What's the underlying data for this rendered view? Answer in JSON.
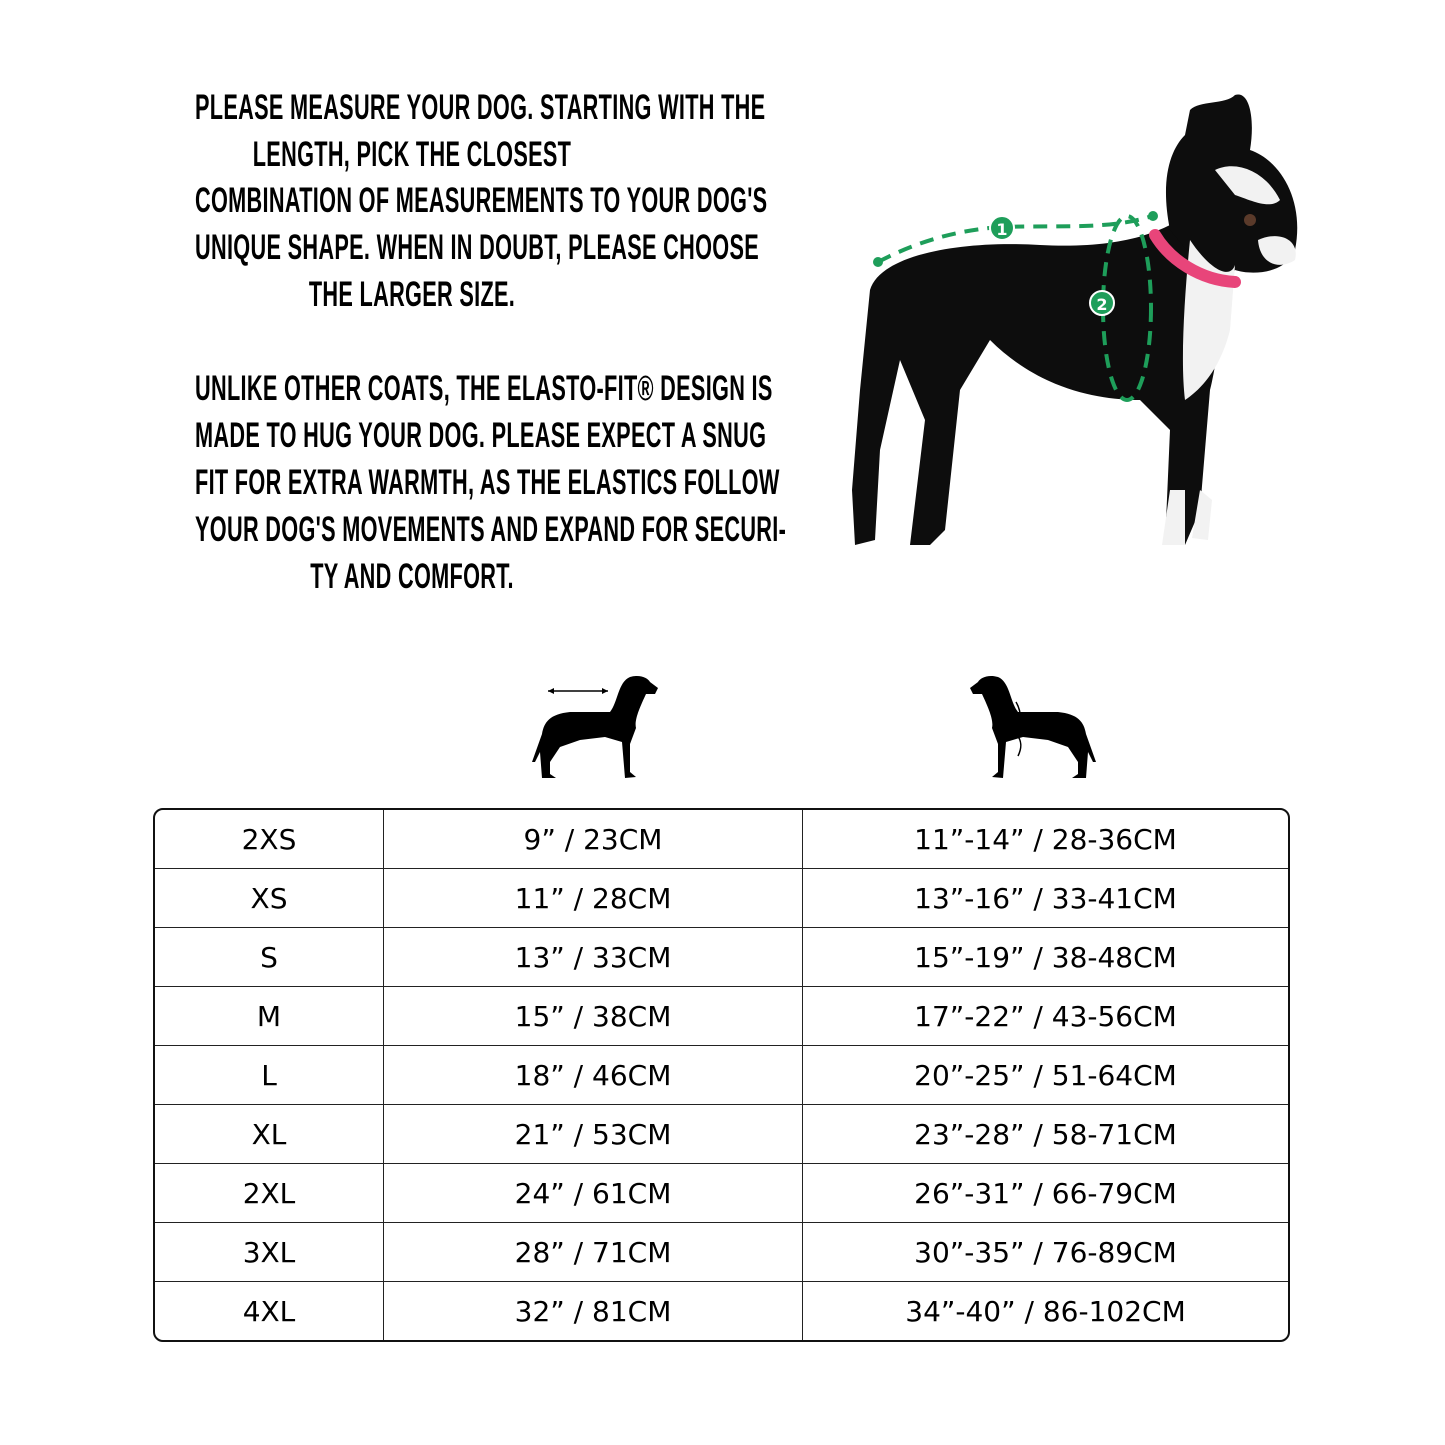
{
  "intro": {
    "paragraph1_lines": [
      "PLEASE MEASURE YOUR DOG. STARTING WITH THE",
      "LENGTH, PICK THE CLOSEST",
      "COMBINATION OF MEASUREMENTS TO YOUR DOG'S",
      "UNIQUE SHAPE. WHEN IN DOUBT, PLEASE CHOOSE",
      "THE LARGER SIZE."
    ],
    "paragraph2_lines": [
      "UNLIKE OTHER COATS, THE ELASTO-FIT® DESIGN IS",
      "MADE TO HUG YOUR DOG. PLEASE EXPECT A SNUG",
      "FIT FOR EXTRA WARMTH, AS THE ELASTICS FOLLOW",
      "YOUR DOG'S MOVEMENTS AND EXPAND FOR SECURI-",
      "TY AND COMFORT."
    ]
  },
  "photo": {
    "markers": [
      "1",
      "2"
    ],
    "marker_color": "#1e9e5a",
    "collar_color": "#e8457a"
  },
  "column_icons": [
    "dog-length-icon",
    "dog-chest-girth-icon"
  ],
  "size_table": {
    "rows": [
      [
        "2XS",
        "9” / 23CM",
        "11”-14” / 28-36CM"
      ],
      [
        "XS",
        "11” / 28CM",
        "13”-16” / 33-41CM"
      ],
      [
        "S",
        "13” / 33CM",
        "15”-19” / 38-48CM"
      ],
      [
        "M",
        "15” / 38CM",
        "17”-22” / 43-56CM"
      ],
      [
        "L",
        "18” / 46CM",
        "20”-25” / 51-64CM"
      ],
      [
        "XL",
        "21” / 53CM",
        "23”-28” / 58-71CM"
      ],
      [
        "2XL",
        "24” / 61CM",
        "26”-31” / 66-79CM"
      ],
      [
        "3XL",
        "28” / 71CM",
        "30”-35” / 76-89CM"
      ],
      [
        "4XL",
        "32” / 81CM",
        "34”-40” / 86-102CM"
      ]
    ]
  }
}
